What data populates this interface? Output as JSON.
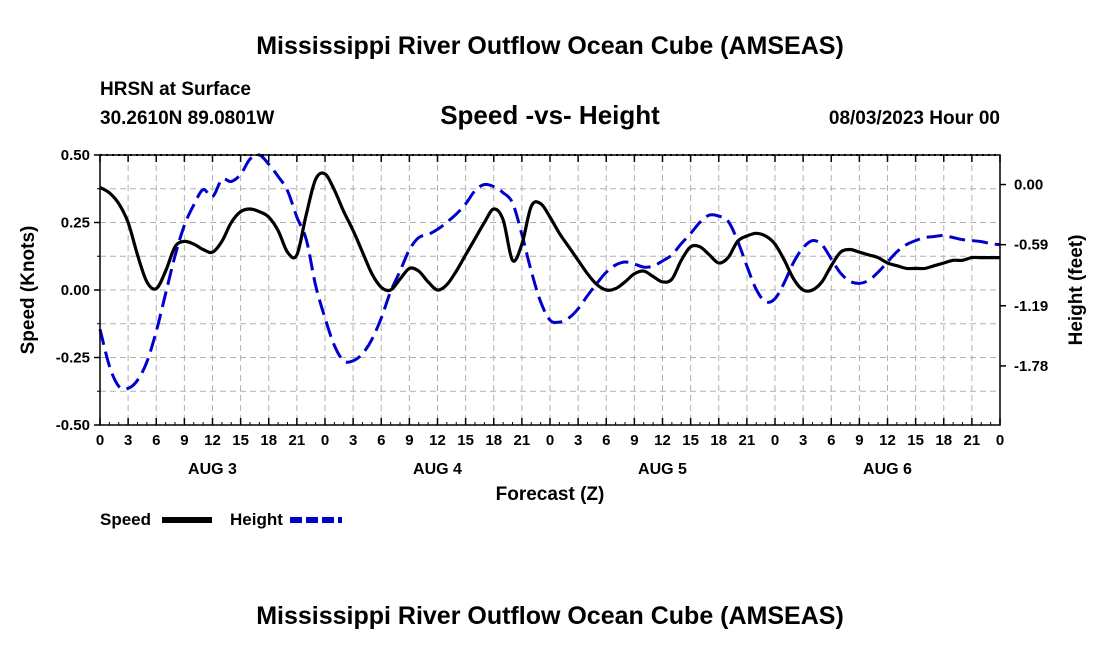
{
  "titles": {
    "main": "Mississippi River Outflow Ocean Cube (AMSEAS)",
    "footer": "Mississippi River Outflow Ocean Cube (AMSEAS)"
  },
  "station": {
    "name": "HRSN at Surface",
    "coords": "30.2610N  89.0801W",
    "datetime": "08/03/2023 Hour 00"
  },
  "chart_data": {
    "type": "line",
    "title": "Speed -vs- Height",
    "xlabel": "Forecast (Z)",
    "ylabel": "Speed (Knots)",
    "y2label": "Height (feet)",
    "ylim": [
      -0.5,
      0.5
    ],
    "y2lim": [
      -2.36,
      0.29
    ],
    "yticks": [
      "0.50",
      "0.25",
      "0.00",
      "-0.25",
      "-0.50"
    ],
    "yticks_values": [
      0.5,
      0.25,
      0.0,
      -0.25,
      -0.5
    ],
    "y2ticks": [
      "0.00",
      "-0.59",
      "-1.19",
      "-1.78"
    ],
    "y2ticks_values": [
      0.0,
      -0.59,
      -1.19,
      -1.78
    ],
    "xlim": [
      0,
      96
    ],
    "xtick_labels": [
      "0",
      "3",
      "6",
      "9",
      "12",
      "15",
      "18",
      "21",
      "0",
      "3",
      "6",
      "9",
      "12",
      "15",
      "18",
      "21",
      "0",
      "3",
      "6",
      "9",
      "12",
      "15",
      "18",
      "21",
      "0",
      "3",
      "6",
      "9",
      "12",
      "15",
      "18",
      "21",
      "0"
    ],
    "date_labels": [
      {
        "label": "AUG 3",
        "hour": 12
      },
      {
        "label": "AUG 4",
        "hour": 36
      },
      {
        "label": "AUG 5",
        "hour": 60
      },
      {
        "label": "AUG 6",
        "hour": 84
      }
    ],
    "grid": true,
    "series": [
      {
        "name": "Speed",
        "axis": "left",
        "color": "#000000",
        "dash": "solid",
        "points": [
          [
            0,
            0.38
          ],
          [
            1,
            0.36
          ],
          [
            2,
            0.32
          ],
          [
            3,
            0.25
          ],
          [
            4,
            0.13
          ],
          [
            5,
            0.03
          ],
          [
            6,
            0.005
          ],
          [
            7,
            0.07
          ],
          [
            8,
            0.16
          ],
          [
            9,
            0.18
          ],
          [
            10,
            0.17
          ],
          [
            11,
            0.15
          ],
          [
            12,
            0.14
          ],
          [
            13,
            0.18
          ],
          [
            14,
            0.25
          ],
          [
            15,
            0.29
          ],
          [
            16,
            0.3
          ],
          [
            17,
            0.29
          ],
          [
            18,
            0.27
          ],
          [
            19,
            0.22
          ],
          [
            20,
            0.14
          ],
          [
            21,
            0.13
          ],
          [
            22,
            0.28
          ],
          [
            23,
            0.41
          ],
          [
            24,
            0.43
          ],
          [
            25,
            0.37
          ],
          [
            26,
            0.29
          ],
          [
            27,
            0.22
          ],
          [
            28,
            0.14
          ],
          [
            29,
            0.06
          ],
          [
            30,
            0.01
          ],
          [
            31,
            0.0
          ],
          [
            32,
            0.04
          ],
          [
            33,
            0.08
          ],
          [
            34,
            0.07
          ],
          [
            35,
            0.03
          ],
          [
            36,
            0.0
          ],
          [
            37,
            0.02
          ],
          [
            38,
            0.07
          ],
          [
            39,
            0.13
          ],
          [
            40,
            0.19
          ],
          [
            41,
            0.25
          ],
          [
            42,
            0.3
          ],
          [
            43,
            0.26
          ],
          [
            44,
            0.11
          ],
          [
            45,
            0.17
          ],
          [
            46,
            0.31
          ],
          [
            47,
            0.32
          ],
          [
            48,
            0.27
          ],
          [
            49,
            0.21
          ],
          [
            50,
            0.16
          ],
          [
            51,
            0.11
          ],
          [
            52,
            0.06
          ],
          [
            53,
            0.02
          ],
          [
            54,
            0.0
          ],
          [
            55,
            0.005
          ],
          [
            56,
            0.03
          ],
          [
            57,
            0.06
          ],
          [
            58,
            0.07
          ],
          [
            59,
            0.05
          ],
          [
            60,
            0.03
          ],
          [
            61,
            0.04
          ],
          [
            62,
            0.11
          ],
          [
            63,
            0.16
          ],
          [
            64,
            0.16
          ],
          [
            65,
            0.13
          ],
          [
            66,
            0.1
          ],
          [
            67,
            0.12
          ],
          [
            68,
            0.18
          ],
          [
            69,
            0.2
          ],
          [
            70,
            0.21
          ],
          [
            71,
            0.2
          ],
          [
            72,
            0.17
          ],
          [
            73,
            0.11
          ],
          [
            74,
            0.04
          ],
          [
            75,
            0.0
          ],
          [
            76,
            0.0
          ],
          [
            77,
            0.03
          ],
          [
            78,
            0.09
          ],
          [
            79,
            0.14
          ],
          [
            80,
            0.15
          ],
          [
            81,
            0.14
          ],
          [
            82,
            0.13
          ],
          [
            83,
            0.12
          ],
          [
            84,
            0.1
          ],
          [
            85,
            0.09
          ],
          [
            86,
            0.08
          ],
          [
            87,
            0.08
          ],
          [
            88,
            0.08
          ],
          [
            89,
            0.09
          ],
          [
            90,
            0.1
          ],
          [
            91,
            0.11
          ],
          [
            92,
            0.11
          ],
          [
            93,
            0.12
          ],
          [
            94,
            0.12
          ],
          [
            95,
            0.12
          ],
          [
            96,
            0.12
          ]
        ]
      },
      {
        "name": "Height",
        "axis": "right",
        "color": "#0000cc",
        "dash": "dashed",
        "points": [
          [
            0,
            -1.42
          ],
          [
            1,
            -1.78
          ],
          [
            2,
            -1.98
          ],
          [
            3,
            -2.0
          ],
          [
            4,
            -1.92
          ],
          [
            5,
            -1.74
          ],
          [
            6,
            -1.44
          ],
          [
            7,
            -1.07
          ],
          [
            8,
            -0.7
          ],
          [
            9,
            -0.4
          ],
          [
            10,
            -0.2
          ],
          [
            11,
            -0.05
          ],
          [
            12,
            -0.12
          ],
          [
            13,
            0.05
          ],
          [
            14,
            0.03
          ],
          [
            15,
            0.1
          ],
          [
            16,
            0.25
          ],
          [
            17,
            0.29
          ],
          [
            18,
            0.2
          ],
          [
            19,
            0.08
          ],
          [
            20,
            -0.06
          ],
          [
            21,
            -0.32
          ],
          [
            22,
            -0.54
          ],
          [
            23,
            -0.99
          ],
          [
            24,
            -1.31
          ],
          [
            25,
            -1.58
          ],
          [
            26,
            -1.73
          ],
          [
            27,
            -1.73
          ],
          [
            28,
            -1.66
          ],
          [
            29,
            -1.52
          ],
          [
            30,
            -1.31
          ],
          [
            31,
            -1.05
          ],
          [
            32,
            -0.85
          ],
          [
            33,
            -0.64
          ],
          [
            34,
            -0.52
          ],
          [
            35,
            -0.49
          ],
          [
            36,
            -0.44
          ],
          [
            37,
            -0.37
          ],
          [
            38,
            -0.29
          ],
          [
            39,
            -0.19
          ],
          [
            40,
            -0.06
          ],
          [
            41,
            0.0
          ],
          [
            42,
            -0.02
          ],
          [
            43,
            -0.08
          ],
          [
            44,
            -0.18
          ],
          [
            45,
            -0.49
          ],
          [
            46,
            -0.85
          ],
          [
            47,
            -1.15
          ],
          [
            48,
            -1.33
          ],
          [
            49,
            -1.35
          ],
          [
            50,
            -1.31
          ],
          [
            51,
            -1.22
          ],
          [
            52,
            -1.09
          ],
          [
            53,
            -0.97
          ],
          [
            54,
            -0.86
          ],
          [
            55,
            -0.79
          ],
          [
            56,
            -0.76
          ],
          [
            57,
            -0.78
          ],
          [
            58,
            -0.81
          ],
          [
            59,
            -0.8
          ],
          [
            60,
            -0.75
          ],
          [
            61,
            -0.69
          ],
          [
            62,
            -0.58
          ],
          [
            63,
            -0.48
          ],
          [
            64,
            -0.37
          ],
          [
            65,
            -0.3
          ],
          [
            66,
            -0.31
          ],
          [
            67,
            -0.36
          ],
          [
            68,
            -0.55
          ],
          [
            69,
            -0.8
          ],
          [
            70,
            -1.03
          ],
          [
            71,
            -1.15
          ],
          [
            72,
            -1.12
          ],
          [
            73,
            -0.96
          ],
          [
            74,
            -0.76
          ],
          [
            75,
            -0.62
          ],
          [
            76,
            -0.55
          ],
          [
            77,
            -0.59
          ],
          [
            78,
            -0.73
          ],
          [
            79,
            -0.87
          ],
          [
            80,
            -0.95
          ],
          [
            81,
            -0.97
          ],
          [
            82,
            -0.94
          ],
          [
            83,
            -0.86
          ],
          [
            84,
            -0.76
          ],
          [
            85,
            -0.66
          ],
          [
            86,
            -0.59
          ],
          [
            87,
            -0.55
          ],
          [
            88,
            -0.52
          ],
          [
            89,
            -0.51
          ],
          [
            90,
            -0.5
          ],
          [
            91,
            -0.52
          ],
          [
            92,
            -0.54
          ],
          [
            93,
            -0.55
          ],
          [
            94,
            -0.56
          ],
          [
            95,
            -0.58
          ],
          [
            96,
            -0.59
          ]
        ]
      }
    ]
  },
  "legend": {
    "speed_label": "Speed",
    "height_label": "Height",
    "speed_color": "#000000",
    "height_color": "#0000cc"
  }
}
